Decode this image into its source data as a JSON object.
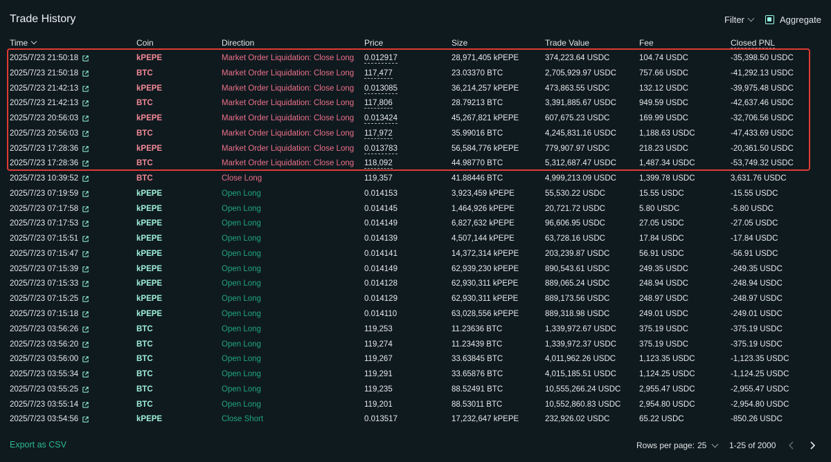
{
  "header": {
    "title": "Trade History",
    "filter_label": "Filter",
    "aggregate_label": "Aggregate"
  },
  "columns": {
    "time": "Time",
    "coin": "Coin",
    "direction": "Direction",
    "price": "Price",
    "size": "Size",
    "trade_value": "Trade Value",
    "fee": "Fee",
    "closed_pnl": "Closed PNL"
  },
  "colors": {
    "highlight_border": "#e03a33",
    "liquidation_red": "#ed7088",
    "open_green": "#1fa67d",
    "accent": "#97fce4"
  },
  "rows": [
    {
      "time": "2025/7/23 21:50:18",
      "coin": "kPEPE",
      "direction": "Market Order Liquidation: Close Long",
      "price": "0.012917",
      "size": "28,971,405 kPEPE",
      "value": "374,223.64 USDC",
      "fee": "104.74 USDC",
      "pnl": "-35,398.50 USDC",
      "tone": "red",
      "price_underline": true
    },
    {
      "time": "2025/7/23 21:50:18",
      "coin": "BTC",
      "direction": "Market Order Liquidation: Close Long",
      "price": "117,477",
      "size": "23.03370 BTC",
      "value": "2,705,929.97 USDC",
      "fee": "757.66 USDC",
      "pnl": "-41,292.13 USDC",
      "tone": "red",
      "price_underline": true
    },
    {
      "time": "2025/7/23 21:42:13",
      "coin": "kPEPE",
      "direction": "Market Order Liquidation: Close Long",
      "price": "0.013085",
      "size": "36,214,257 kPEPE",
      "value": "473,863.55 USDC",
      "fee": "132.12 USDC",
      "pnl": "-39,975.48 USDC",
      "tone": "red",
      "price_underline": true
    },
    {
      "time": "2025/7/23 21:42:13",
      "coin": "BTC",
      "direction": "Market Order Liquidation: Close Long",
      "price": "117,806",
      "size": "28.79213 BTC",
      "value": "3,391,885.67 USDC",
      "fee": "949.59 USDC",
      "pnl": "-42,637.46 USDC",
      "tone": "red",
      "price_underline": true
    },
    {
      "time": "2025/7/23 20:56:03",
      "coin": "kPEPE",
      "direction": "Market Order Liquidation: Close Long",
      "price": "0.013424",
      "size": "45,267,821 kPEPE",
      "value": "607,675.23 USDC",
      "fee": "169.99 USDC",
      "pnl": "-32,706.56 USDC",
      "tone": "red",
      "price_underline": true
    },
    {
      "time": "2025/7/23 20:56:03",
      "coin": "BTC",
      "direction": "Market Order Liquidation: Close Long",
      "price": "117,972",
      "size": "35.99016 BTC",
      "value": "4,245,831.16 USDC",
      "fee": "1,188.63 USDC",
      "pnl": "-47,433.69 USDC",
      "tone": "red",
      "price_underline": true
    },
    {
      "time": "2025/7/23 17:28:36",
      "coin": "kPEPE",
      "direction": "Market Order Liquidation: Close Long",
      "price": "0.013783",
      "size": "56,584,776 kPEPE",
      "value": "779,907.97 USDC",
      "fee": "218.23 USDC",
      "pnl": "-20,361.50 USDC",
      "tone": "red",
      "price_underline": true
    },
    {
      "time": "2025/7/23 17:28:36",
      "coin": "BTC",
      "direction": "Market Order Liquidation: Close Long",
      "price": "118,092",
      "size": "44.98770 BTC",
      "value": "5,312,687.47 USDC",
      "fee": "1,487.34 USDC",
      "pnl": "-53,749.32 USDC",
      "tone": "red",
      "price_underline": true
    },
    {
      "time": "2025/7/23 10:39:52",
      "coin": "BTC",
      "direction": "Close Long",
      "price": "119,357",
      "size": "41.88446 BTC",
      "value": "4,999,213.09 USDC",
      "fee": "1,399.78 USDC",
      "pnl": "3,631.76 USDC",
      "tone": "red",
      "price_underline": false
    },
    {
      "time": "2025/7/23 07:19:59",
      "coin": "kPEPE",
      "direction": "Open Long",
      "price": "0.014153",
      "size": "3,923,459 kPEPE",
      "value": "55,530.22 USDC",
      "fee": "15.55 USDC",
      "pnl": "-15.55 USDC",
      "tone": "green",
      "price_underline": false
    },
    {
      "time": "2025/7/23 07:17:58",
      "coin": "kPEPE",
      "direction": "Open Long",
      "price": "0.014145",
      "size": "1,464,926 kPEPE",
      "value": "20,721.72 USDC",
      "fee": "5.80 USDC",
      "pnl": "-5.80 USDC",
      "tone": "green",
      "price_underline": false
    },
    {
      "time": "2025/7/23 07:17:53",
      "coin": "kPEPE",
      "direction": "Open Long",
      "price": "0.014149",
      "size": "6,827,632 kPEPE",
      "value": "96,606.95 USDC",
      "fee": "27.05 USDC",
      "pnl": "-27.05 USDC",
      "tone": "green",
      "price_underline": false
    },
    {
      "time": "2025/7/23 07:15:51",
      "coin": "kPEPE",
      "direction": "Open Long",
      "price": "0.014139",
      "size": "4,507,144 kPEPE",
      "value": "63,728.16 USDC",
      "fee": "17.84 USDC",
      "pnl": "-17.84 USDC",
      "tone": "green",
      "price_underline": false
    },
    {
      "time": "2025/7/23 07:15:47",
      "coin": "kPEPE",
      "direction": "Open Long",
      "price": "0.014141",
      "size": "14,372,314 kPEPE",
      "value": "203,239.87 USDC",
      "fee": "56.91 USDC",
      "pnl": "-56.91 USDC",
      "tone": "green",
      "price_underline": false
    },
    {
      "time": "2025/7/23 07:15:39",
      "coin": "kPEPE",
      "direction": "Open Long",
      "price": "0.014149",
      "size": "62,939,230 kPEPE",
      "value": "890,543.61 USDC",
      "fee": "249.35 USDC",
      "pnl": "-249.35 USDC",
      "tone": "green",
      "price_underline": false
    },
    {
      "time": "2025/7/23 07:15:33",
      "coin": "kPEPE",
      "direction": "Open Long",
      "price": "0.014128",
      "size": "62,930,311 kPEPE",
      "value": "889,065.24 USDC",
      "fee": "248.94 USDC",
      "pnl": "-248.94 USDC",
      "tone": "green",
      "price_underline": false
    },
    {
      "time": "2025/7/23 07:15:25",
      "coin": "kPEPE",
      "direction": "Open Long",
      "price": "0.014129",
      "size": "62,930,311 kPEPE",
      "value": "889,173.56 USDC",
      "fee": "248.97 USDC",
      "pnl": "-248.97 USDC",
      "tone": "green",
      "price_underline": false
    },
    {
      "time": "2025/7/23 07:15:18",
      "coin": "kPEPE",
      "direction": "Open Long",
      "price": "0.014110",
      "size": "63,028,556 kPEPE",
      "value": "889,318.98 USDC",
      "fee": "249.01 USDC",
      "pnl": "-249.01 USDC",
      "tone": "green",
      "price_underline": false
    },
    {
      "time": "2025/7/23 03:56:26",
      "coin": "BTC",
      "direction": "Open Long",
      "price": "119,253",
      "size": "11.23636 BTC",
      "value": "1,339,972.67 USDC",
      "fee": "375.19 USDC",
      "pnl": "-375.19 USDC",
      "tone": "green",
      "price_underline": false
    },
    {
      "time": "2025/7/23 03:56:20",
      "coin": "BTC",
      "direction": "Open Long",
      "price": "119,274",
      "size": "11.23439 BTC",
      "value": "1,339,972.37 USDC",
      "fee": "375.19 USDC",
      "pnl": "-375.19 USDC",
      "tone": "green",
      "price_underline": false
    },
    {
      "time": "2025/7/23 03:56:00",
      "coin": "BTC",
      "direction": "Open Long",
      "price": "119,267",
      "size": "33.63845 BTC",
      "value": "4,011,962.26 USDC",
      "fee": "1,123.35 USDC",
      "pnl": "-1,123.35 USDC",
      "tone": "green",
      "price_underline": false
    },
    {
      "time": "2025/7/23 03:55:34",
      "coin": "BTC",
      "direction": "Open Long",
      "price": "119,291",
      "size": "33.65876 BTC",
      "value": "4,015,185.51 USDC",
      "fee": "1,124.25 USDC",
      "pnl": "-1,124.25 USDC",
      "tone": "green",
      "price_underline": false
    },
    {
      "time": "2025/7/23 03:55:25",
      "coin": "BTC",
      "direction": "Open Long",
      "price": "119,235",
      "size": "88.52491 BTC",
      "value": "10,555,266.24 USDC",
      "fee": "2,955.47 USDC",
      "pnl": "-2,955.47 USDC",
      "tone": "green",
      "price_underline": false
    },
    {
      "time": "2025/7/23 03:55:14",
      "coin": "BTC",
      "direction": "Open Long",
      "price": "119,201",
      "size": "88.53011 BTC",
      "value": "10,552,860.83 USDC",
      "fee": "2,954.80 USDC",
      "pnl": "-2,954.80 USDC",
      "tone": "green",
      "price_underline": false
    },
    {
      "time": "2025/7/23 03:54:56",
      "coin": "kPEPE",
      "direction": "Close Short",
      "price": "0.013517",
      "size": "17,232,647 kPEPE",
      "value": "232,926.02 USDC",
      "fee": "65.22 USDC",
      "pnl": "-850.26 USDC",
      "tone": "green",
      "price_underline": false
    }
  ],
  "footer": {
    "export_label": "Export as CSV",
    "rows_per_page_label": "Rows per page:",
    "rows_per_page_value": "25",
    "range_label": "1-25 of 2000"
  }
}
